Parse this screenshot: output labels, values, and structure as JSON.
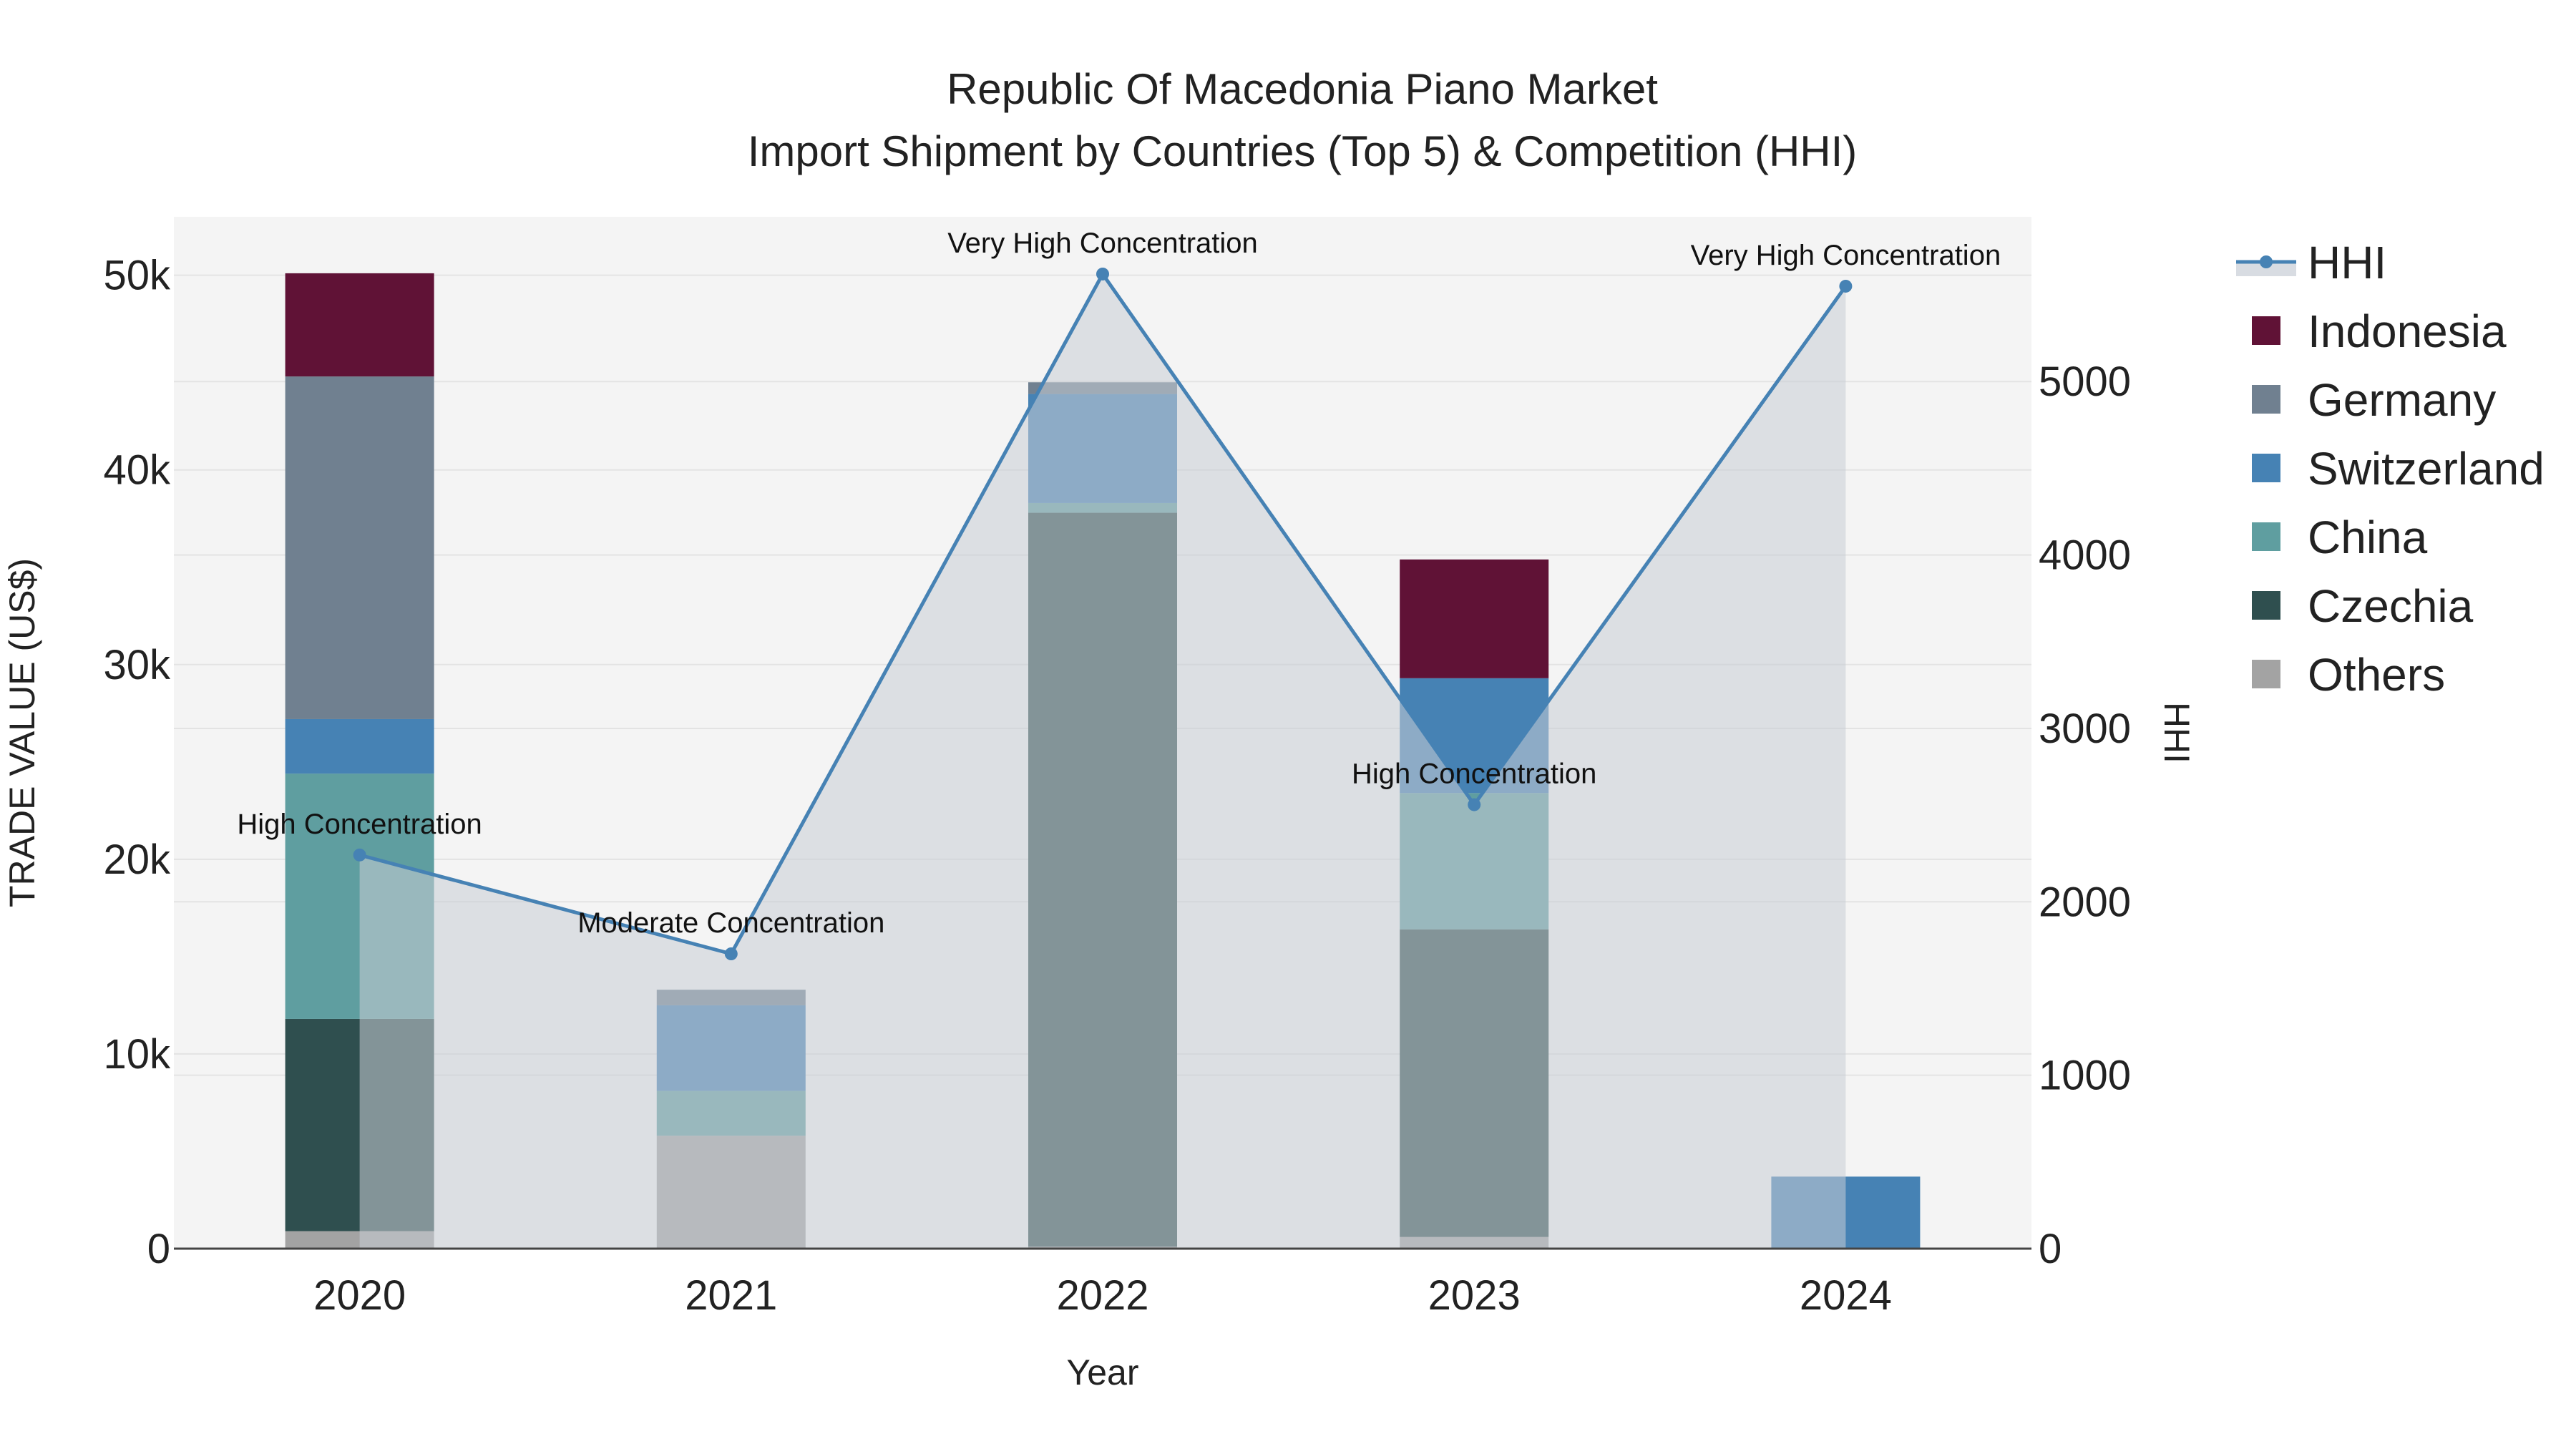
{
  "chart_data": {
    "type": "bar",
    "title_line1": "Republic Of Macedonia Piano Market",
    "title_line2": "Import Shipment by Countries (Top 5) & Competition (HHI)",
    "xlabel": "Year",
    "ylabel": "TRADE VALUE (US$)",
    "y2label": "HHI",
    "categories": [
      "2020",
      "2021",
      "2022",
      "2023",
      "2024"
    ],
    "ylim": [
      0,
      53000
    ],
    "y2lim": [
      0,
      5950
    ],
    "yticks": [
      0,
      10000,
      20000,
      30000,
      40000,
      50000
    ],
    "ytick_labels": [
      "0",
      "10k",
      "20k",
      "30k",
      "40k",
      "50k"
    ],
    "y2ticks": [
      0,
      1000,
      2000,
      3000,
      4000,
      5000
    ],
    "y2tick_labels": [
      "0",
      "1000",
      "2000",
      "3000",
      "4000",
      "5000"
    ],
    "series": [
      {
        "name": "Others",
        "color": "#a3a3a3",
        "values": [
          900,
          5800,
          100,
          600,
          50
        ]
      },
      {
        "name": "Czechia",
        "color": "#2f4f4f",
        "values": [
          10900,
          0,
          37700,
          15800,
          0
        ]
      },
      {
        "name": "China",
        "color": "#5f9ea0",
        "values": [
          12600,
          2300,
          500,
          7000,
          0
        ]
      },
      {
        "name": "Switzerland",
        "color": "#4682b4",
        "values": [
          2800,
          4400,
          5600,
          5900,
          3650
        ]
      },
      {
        "name": "Germany",
        "color": "#708090",
        "values": [
          17600,
          800,
          600,
          0,
          0
        ]
      },
      {
        "name": "Indonesia",
        "color": "#601236",
        "values": [
          5300,
          0,
          0,
          6100,
          0
        ]
      }
    ],
    "hhi": {
      "name": "HHI",
      "color": "#4682b4",
      "fill_color": "#c8cdd5",
      "values": [
        2270,
        1700,
        5620,
        2560,
        5550
      ],
      "labels": [
        "High Concentration",
        "Moderate Concentration",
        "Very High Concentration",
        "High Concentration",
        "Very High Concentration"
      ]
    },
    "legend_order": [
      "HHI",
      "Indonesia",
      "Germany",
      "Switzerland",
      "China",
      "Czechia",
      "Others"
    ],
    "legend_position": "right"
  }
}
